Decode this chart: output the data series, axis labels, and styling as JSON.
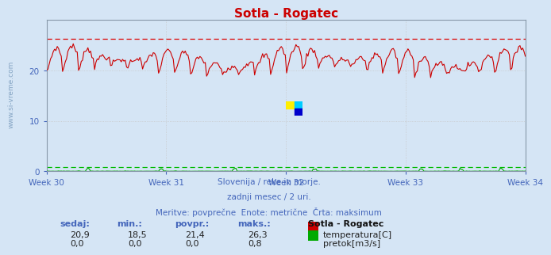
{
  "title": "Sotla - Rogatec",
  "bg_color": "#d5e5f5",
  "plot_bg_color": "#d5e5f5",
  "grid_color": "#c8c8c8",
  "temp_color": "#cc0000",
  "flow_color": "#00aa00",
  "max_line_color": "#dd0000",
  "flow_max_line_color": "#00bb00",
  "ylim": [
    0,
    30
  ],
  "yticks": [
    0,
    10,
    20
  ],
  "xlim": [
    0,
    360
  ],
  "weeks": [
    "Week 30",
    "Week 31",
    "Week 32",
    "Week 33",
    "Week 34"
  ],
  "week_positions": [
    0,
    90,
    180,
    270,
    360
  ],
  "n_points": 360,
  "temp_mean": 21.4,
  "temp_min": 18.5,
  "temp_max": 26.3,
  "temp_current": 20.9,
  "flow_mean": 0.0,
  "flow_min": 0.0,
  "flow_max": 0.8,
  "flow_current": 0.0,
  "max_dashed_temp": 26.3,
  "max_dashed_flow": 0.8,
  "subtitle1": "Slovenija / reke in morje.",
  "subtitle2": "zadnji mesec / 2 uri.",
  "subtitle3": "Meritve: povprečne  Enote: metrične  Črta: maksimum",
  "legend_title": "Sotla - Rogatec",
  "label_color": "#4466bb",
  "title_color": "#cc0000",
  "watermark": "www.si-vreme.com",
  "headers": [
    "sedaj:",
    "min.:",
    "povpr.:",
    "maks.:"
  ],
  "vals_temp": [
    "20,9",
    "18,5",
    "21,4",
    "26,3"
  ],
  "vals_flow": [
    "0,0",
    "0,0",
    "0,0",
    "0,8"
  ],
  "legend_temp": "temperatura[C]",
  "legend_flow": "pretok[m3/s]"
}
